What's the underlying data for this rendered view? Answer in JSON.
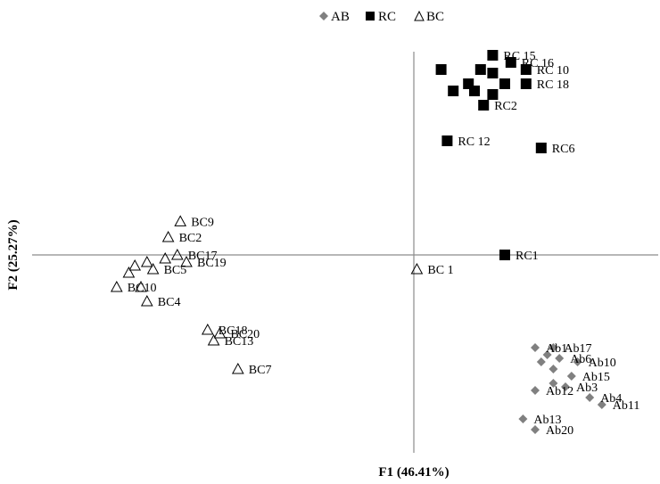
{
  "chart_data": {
    "type": "scatter",
    "xlabel": "F1 (46.41%)",
    "ylabel": "F2 (25.27%)",
    "xlim": [
      -6.7,
      4.3
    ],
    "ylim": [
      -3.8,
      3.7
    ],
    "grid": false,
    "legend_position": "top",
    "series": [
      {
        "name": "AB",
        "marker": "diamond",
        "color": "#808080",
        "points": [
          {
            "label": "Ab1",
            "x": 2.0,
            "y": -1.3
          },
          {
            "label": "Ab17",
            "x": 2.3,
            "y": -1.3
          },
          {
            "label": "",
            "x": 2.2,
            "y": -1.4
          },
          {
            "label": "Ab6",
            "x": 2.4,
            "y": -1.45
          },
          {
            "label": "Ab10",
            "x": 2.7,
            "y": -1.5
          },
          {
            "label": "",
            "x": 2.1,
            "y": -1.5
          },
          {
            "label": "",
            "x": 2.3,
            "y": -1.6
          },
          {
            "label": "Ab15",
            "x": 2.6,
            "y": -1.7
          },
          {
            "label": "",
            "x": 2.3,
            "y": -1.8
          },
          {
            "label": "Ab3",
            "x": 2.5,
            "y": -1.85
          },
          {
            "label": "Ab12",
            "x": 2.0,
            "y": -1.9
          },
          {
            "label": "Ab4",
            "x": 2.9,
            "y": -2.0
          },
          {
            "label": "Ab11",
            "x": 3.1,
            "y": -2.1
          },
          {
            "label": "Ab13",
            "x": 1.8,
            "y": -2.3
          },
          {
            "label": "Ab20",
            "x": 2.0,
            "y": -2.45
          }
        ]
      },
      {
        "name": "RC",
        "marker": "square",
        "color": "#000000",
        "points": [
          {
            "label": "RC 15",
            "x": 1.3,
            "y": 2.8
          },
          {
            "label": "RC 16",
            "x": 1.6,
            "y": 2.7
          },
          {
            "label": "RC 10",
            "x": 1.85,
            "y": 2.6
          },
          {
            "label": "",
            "x": 0.45,
            "y": 2.6
          },
          {
            "label": "",
            "x": 1.1,
            "y": 2.6
          },
          {
            "label": "",
            "x": 1.3,
            "y": 2.55
          },
          {
            "label": "RC 18",
            "x": 1.85,
            "y": 2.4
          },
          {
            "label": "",
            "x": 0.9,
            "y": 2.4
          },
          {
            "label": "",
            "x": 1.5,
            "y": 2.4
          },
          {
            "label": "",
            "x": 0.65,
            "y": 2.3
          },
          {
            "label": "",
            "x": 1.0,
            "y": 2.3
          },
          {
            "label": "",
            "x": 1.3,
            "y": 2.25
          },
          {
            "label": "RC2",
            "x": 1.15,
            "y": 2.1
          },
          {
            "label": "RC 12",
            "x": 0.55,
            "y": 1.6
          },
          {
            "label": "RC6",
            "x": 2.1,
            "y": 1.5
          },
          {
            "label": "RC1",
            "x": 1.5,
            "y": 0.0
          }
        ]
      },
      {
        "name": "BC",
        "marker": "triangle-open",
        "color": "#000000",
        "points": [
          {
            "label": "BC9",
            "x": -3.85,
            "y": 0.47
          },
          {
            "label": "BC2",
            "x": -4.05,
            "y": 0.25
          },
          {
            "label": "BC17",
            "x": -3.9,
            "y": 0.0
          },
          {
            "label": "BC19",
            "x": -3.75,
            "y": -0.1
          },
          {
            "label": "",
            "x": -4.1,
            "y": -0.05
          },
          {
            "label": "",
            "x": -4.4,
            "y": -0.1
          },
          {
            "label": "",
            "x": -4.6,
            "y": -0.15
          },
          {
            "label": "BC5",
            "x": -4.3,
            "y": -0.2
          },
          {
            "label": "",
            "x": -4.7,
            "y": -0.25
          },
          {
            "label": "BC10",
            "x": -4.9,
            "y": -0.45
          },
          {
            "label": "",
            "x": -4.5,
            "y": -0.45
          },
          {
            "label": "BC4",
            "x": -4.4,
            "y": -0.65
          },
          {
            "label": "BC18",
            "x": -3.4,
            "y": -1.05
          },
          {
            "label": "BC20",
            "x": -3.2,
            "y": -1.1
          },
          {
            "label": "BC13",
            "x": -3.3,
            "y": -1.2
          },
          {
            "label": "BC7",
            "x": -2.9,
            "y": -1.6
          },
          {
            "label": "BC 1",
            "x": 0.05,
            "y": -0.2
          }
        ]
      }
    ]
  }
}
